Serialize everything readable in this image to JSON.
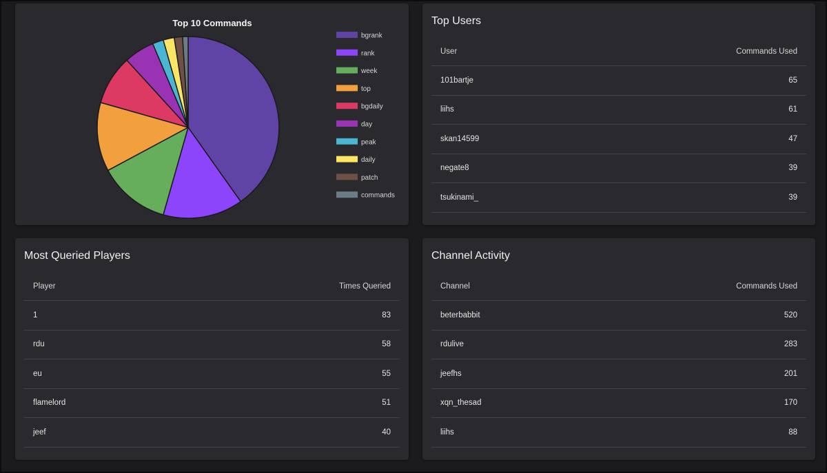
{
  "chart_data": {
    "type": "pie",
    "title": "Top 10 Commands",
    "categories": [
      "bgrank",
      "rank",
      "week",
      "top",
      "bgdaily",
      "day",
      "peak",
      "daily",
      "patch",
      "commands"
    ],
    "values": [
      41,
      14.5,
      13,
      12.5,
      9,
      5.5,
      2,
      2,
      1.5,
      1
    ],
    "colors": [
      "#5f44a5",
      "#8c45fb",
      "#66ad5c",
      "#f2a03d",
      "#dc3a63",
      "#9a33b3",
      "#4ab6d3",
      "#fbe565",
      "#6f5047",
      "#6b7c86"
    ],
    "legend_position": "right"
  },
  "top_users": {
    "title": "Top Users",
    "col_user": "User",
    "col_count": "Commands Used",
    "rows": [
      {
        "name": "101bartje",
        "count": "65"
      },
      {
        "name": "liihs",
        "count": "61"
      },
      {
        "name": "skan14599",
        "count": "47"
      },
      {
        "name": "negate8",
        "count": "39"
      },
      {
        "name": "tsukinami_",
        "count": "39"
      }
    ]
  },
  "players": {
    "title": "Most Queried Players",
    "col_player": "Player",
    "col_count": "Times Queried",
    "rows": [
      {
        "name": "1",
        "count": "83"
      },
      {
        "name": "rdu",
        "count": "58"
      },
      {
        "name": "eu",
        "count": "55"
      },
      {
        "name": "flamelord",
        "count": "51"
      },
      {
        "name": "jeef",
        "count": "40"
      }
    ]
  },
  "channels": {
    "title": "Channel Activity",
    "col_channel": "Channel",
    "col_count": "Commands Used",
    "rows": [
      {
        "name": "beterbabbit",
        "count": "520"
      },
      {
        "name": "rdulive",
        "count": "283"
      },
      {
        "name": "jeefhs",
        "count": "201"
      },
      {
        "name": "xqn_thesad",
        "count": "170"
      },
      {
        "name": "liihs",
        "count": "88"
      }
    ]
  }
}
